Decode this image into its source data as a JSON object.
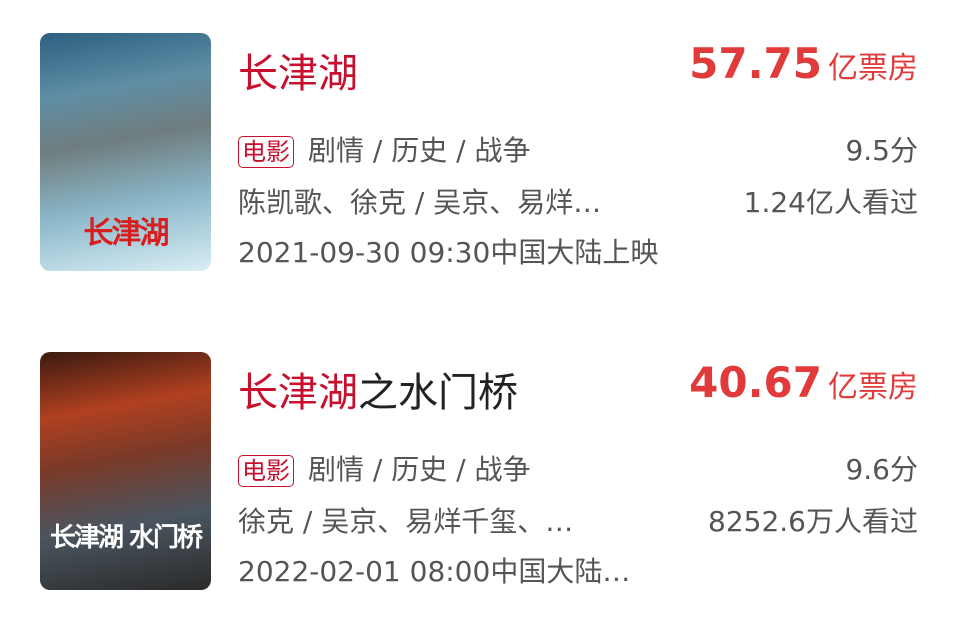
{
  "movies": [
    {
      "title_highlight": "长津湖",
      "title_rest": "",
      "box_office": "57.75",
      "box_unit": "亿票房",
      "tag": "电影",
      "genres": "剧情 / 历史 / 战争",
      "score": "9.5分",
      "cast": "陈凯歌、徐克 / 吴京、易烊…",
      "viewers": "1.24亿人看过",
      "release": "2021-09-30 09:30中国大陆上映",
      "poster_text": "长津湖"
    },
    {
      "title_highlight": "长津湖",
      "title_rest": "之水门桥",
      "box_office": "40.67",
      "box_unit": "亿票房",
      "tag": "电影",
      "genres": "剧情 / 历史 / 战争",
      "score": "9.6分",
      "cast": "徐克 / 吴京、易烊千玺、…",
      "viewers": "8252.6万人看过",
      "release": "2022-02-01 08:00中国大陆…",
      "poster_text": "长津湖 水门桥"
    }
  ]
}
